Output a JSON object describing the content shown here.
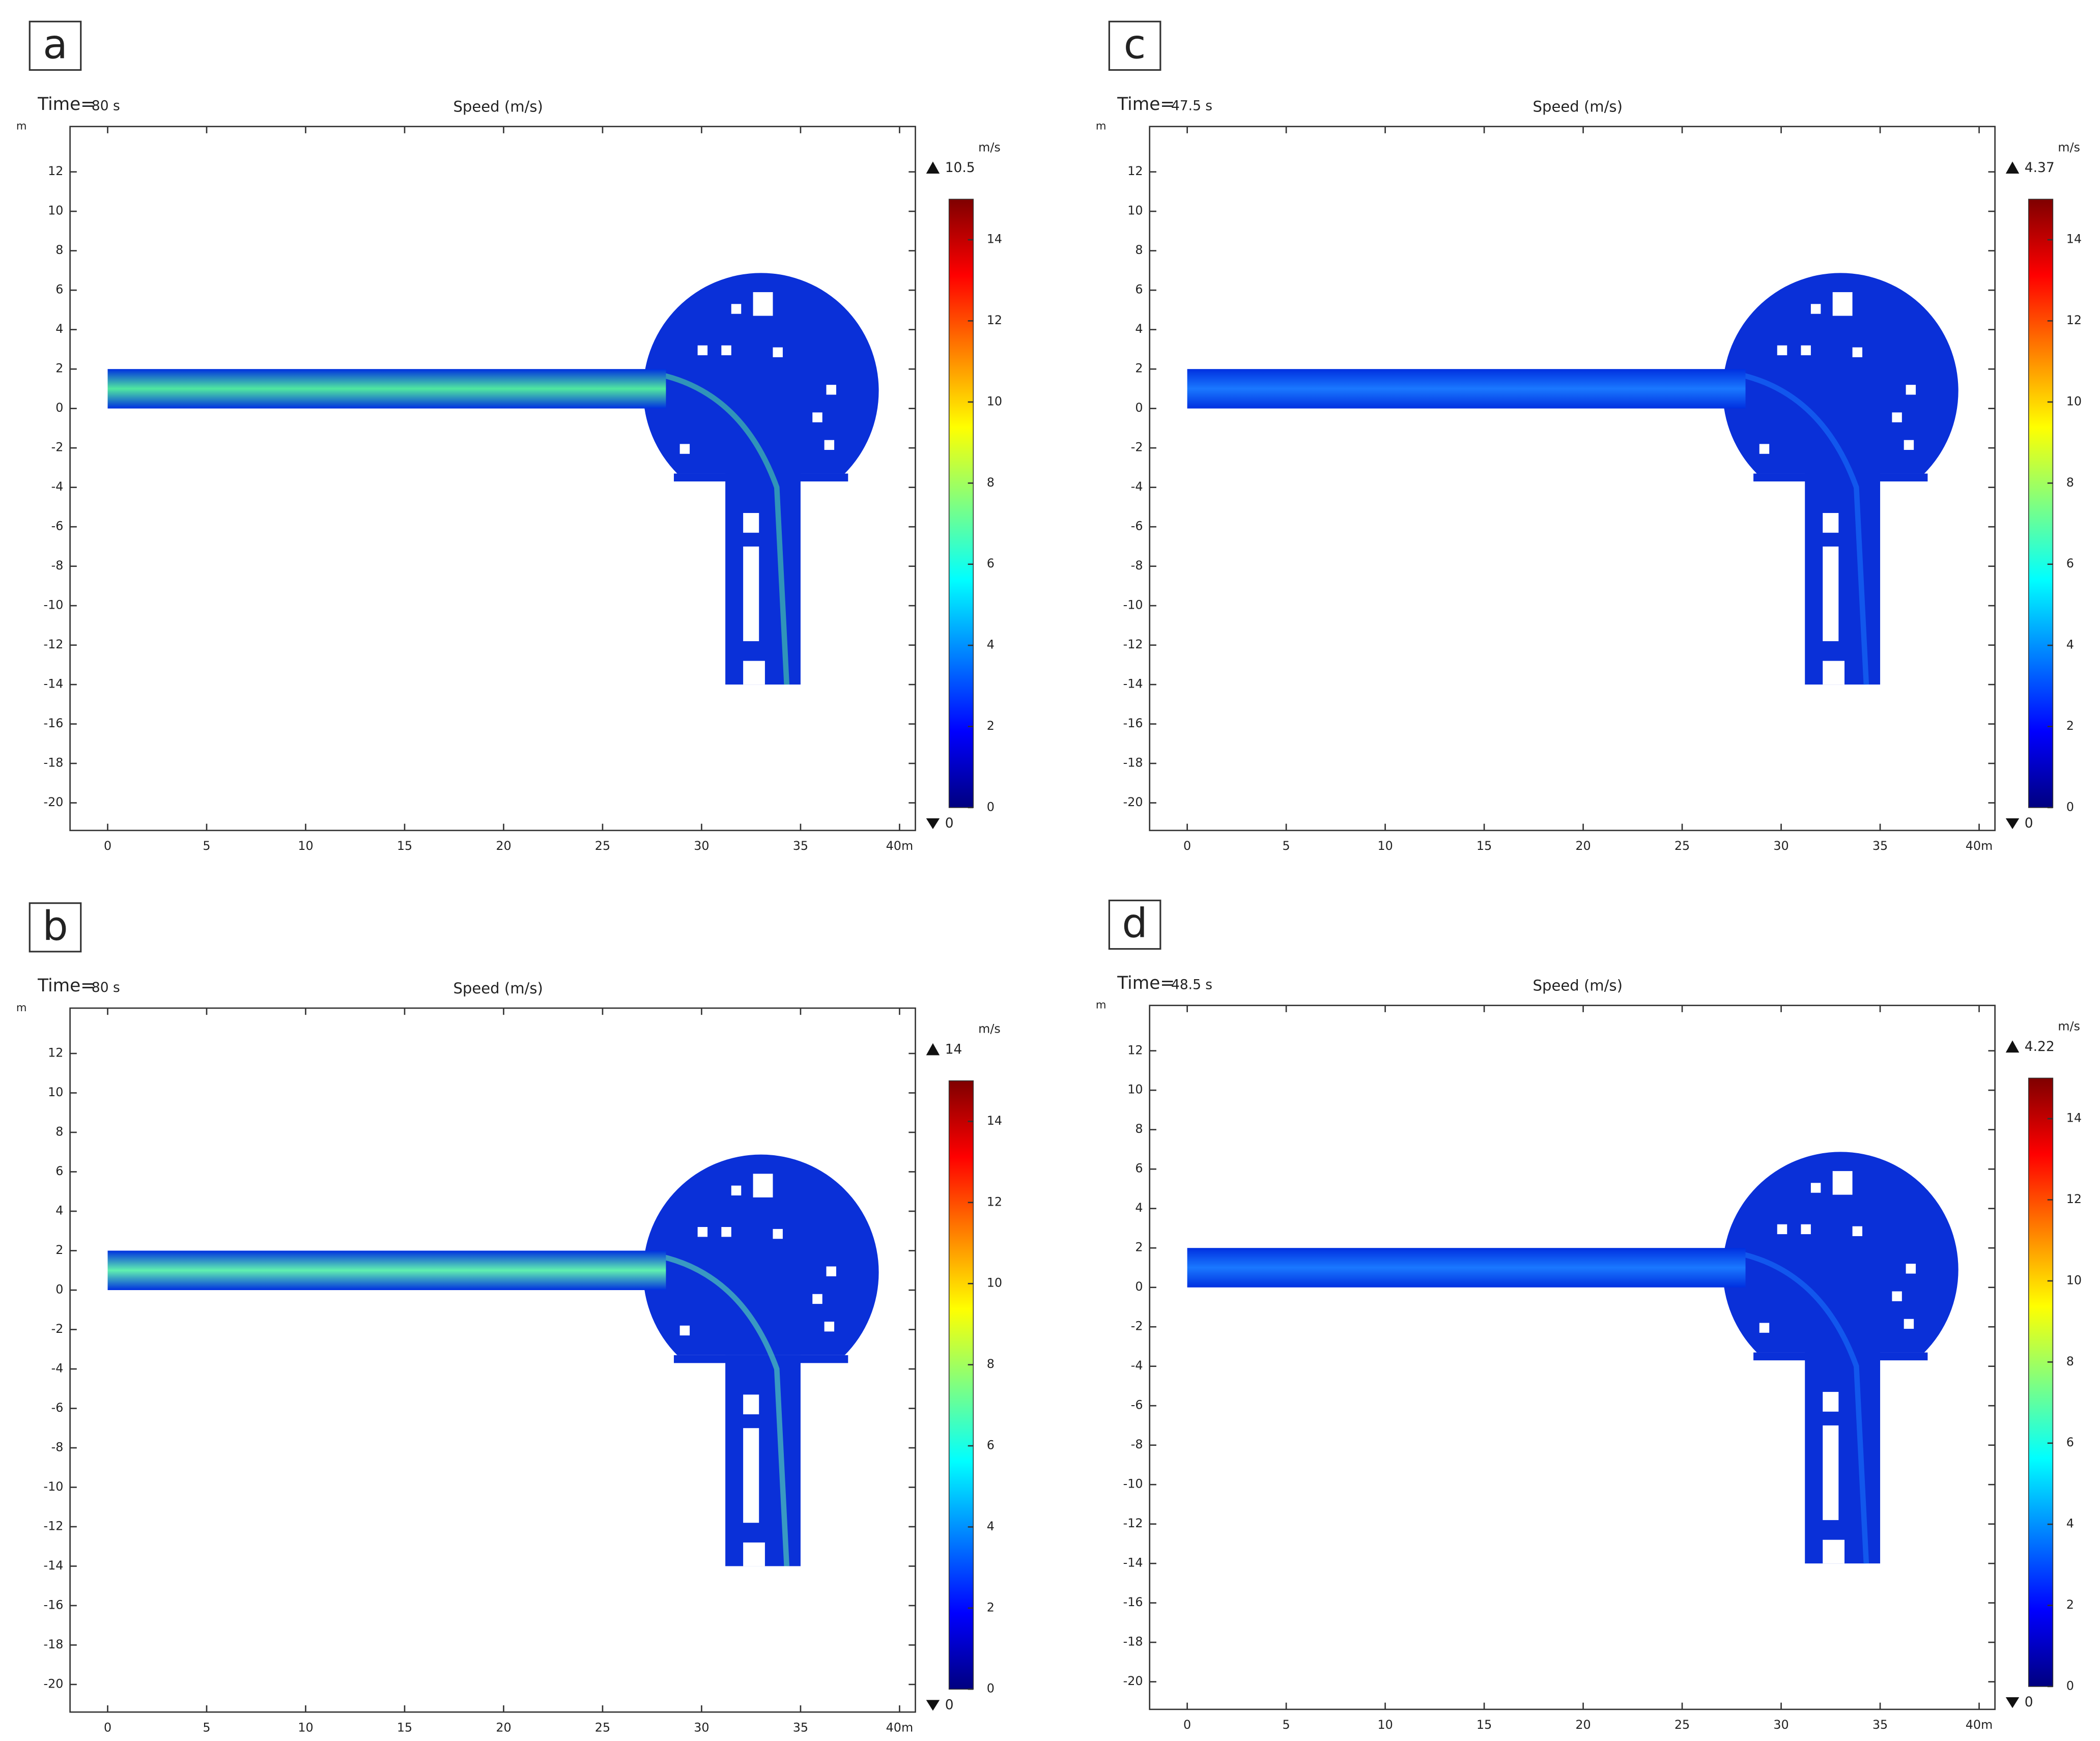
{
  "chart_data": [
    {
      "type": "field",
      "panel_label": "a",
      "time_label": "Time=",
      "time": "80 s",
      "title": "Speed (m/s)",
      "y_unit": "m",
      "xlim": [
        -1.9,
        40.8
      ],
      "ylim": [
        -21.4,
        14.3
      ],
      "xticks": [
        0,
        5,
        10,
        15,
        20,
        25,
        30,
        35,
        {
          "value": 40,
          "label": "40m"
        }
      ],
      "yticks": [
        12,
        10,
        8,
        6,
        4,
        2,
        0,
        -2,
        -4,
        -6,
        -8,
        -10,
        -12,
        -14,
        -16,
        -18,
        -20
      ],
      "channel_colors": [
        "#0030e0",
        "#50e8a0",
        "#0030e0"
      ],
      "field_color": "#0a30d8",
      "colorbar": {
        "unit": "m/s",
        "clim": [
          0,
          15
        ],
        "ticks": [
          0,
          2,
          4,
          6,
          8,
          10,
          12,
          14
        ],
        "max": 10.5,
        "min": 0,
        "colormap": [
          "#00007f",
          "#0000ff",
          "#0080ff",
          "#00ffff",
          "#80ff80",
          "#ffff00",
          "#ff8000",
          "#ff0000",
          "#7f0000"
        ]
      }
    },
    {
      "type": "field",
      "panel_label": "b",
      "time_label": "Time=",
      "time": "80 s",
      "title": "Speed (m/s)",
      "y_unit": "m",
      "xlim": [
        -1.9,
        40.8
      ],
      "ylim": [
        -21.4,
        14.3
      ],
      "xticks": [
        0,
        5,
        10,
        15,
        20,
        25,
        30,
        35,
        {
          "value": 40,
          "label": "40m"
        }
      ],
      "yticks": [
        12,
        10,
        8,
        6,
        4,
        2,
        0,
        -2,
        -4,
        -6,
        -8,
        -10,
        -12,
        -14,
        -16,
        -18,
        -20
      ],
      "channel_colors": [
        "#0030e0",
        "#60f0b0",
        "#0030e0"
      ],
      "field_color": "#0a30d8",
      "colorbar": {
        "unit": "m/s",
        "clim": [
          0,
          15
        ],
        "ticks": [
          0,
          2,
          4,
          6,
          8,
          10,
          12,
          14
        ],
        "max": 14,
        "min": 0,
        "colormap": [
          "#00007f",
          "#0000ff",
          "#0080ff",
          "#00ffff",
          "#80ff80",
          "#ffff00",
          "#ff8000",
          "#ff0000",
          "#7f0000"
        ]
      }
    },
    {
      "type": "field",
      "panel_label": "c",
      "time_label": "Time=",
      "time": "47.5 s",
      "title": "Speed (m/s)",
      "y_unit": "m",
      "xlim": [
        -1.9,
        40.8
      ],
      "ylim": [
        -21.4,
        14.3
      ],
      "xticks": [
        0,
        5,
        10,
        15,
        20,
        25,
        30,
        35,
        {
          "value": 40,
          "label": "40m"
        }
      ],
      "yticks": [
        12,
        10,
        8,
        6,
        4,
        2,
        0,
        -2,
        -4,
        -6,
        -8,
        -10,
        -12,
        -14,
        -16,
        -18,
        -20
      ],
      "channel_colors": [
        "#0030e0",
        "#1a78ff",
        "#0030e0"
      ],
      "field_color": "#0a30d8",
      "colorbar": {
        "unit": "m/s",
        "clim": [
          0,
          15
        ],
        "ticks": [
          0,
          2,
          4,
          6,
          8,
          10,
          12,
          14
        ],
        "max": 4.37,
        "min": 0,
        "colormap": [
          "#00007f",
          "#0000ff",
          "#0080ff",
          "#00ffff",
          "#80ff80",
          "#ffff00",
          "#ff8000",
          "#ff0000",
          "#7f0000"
        ]
      }
    },
    {
      "type": "field",
      "panel_label": "d",
      "time_label": "Time=",
      "time": "48.5 s",
      "title": "Speed (m/s)",
      "y_unit": "m",
      "xlim": [
        -1.9,
        40.8
      ],
      "ylim": [
        -21.4,
        14.3
      ],
      "xticks": [
        0,
        5,
        10,
        15,
        20,
        25,
        30,
        35,
        {
          "value": 40,
          "label": "40m"
        }
      ],
      "yticks": [
        12,
        10,
        8,
        6,
        4,
        2,
        0,
        -2,
        -4,
        -6,
        -8,
        -10,
        -12,
        -14,
        -16,
        -18,
        -20
      ],
      "channel_colors": [
        "#0030e0",
        "#1a78ff",
        "#0030e0"
      ],
      "field_color": "#0a30d8",
      "colorbar": {
        "unit": "m/s",
        "clim": [
          0,
          15
        ],
        "ticks": [
          0,
          2,
          4,
          6,
          8,
          10,
          12,
          14
        ],
        "max": 4.22,
        "min": 0,
        "colormap": [
          "#00007f",
          "#0000ff",
          "#0080ff",
          "#00ffff",
          "#80ff80",
          "#ffff00",
          "#ff8000",
          "#ff0000",
          "#7f0000"
        ]
      }
    }
  ]
}
